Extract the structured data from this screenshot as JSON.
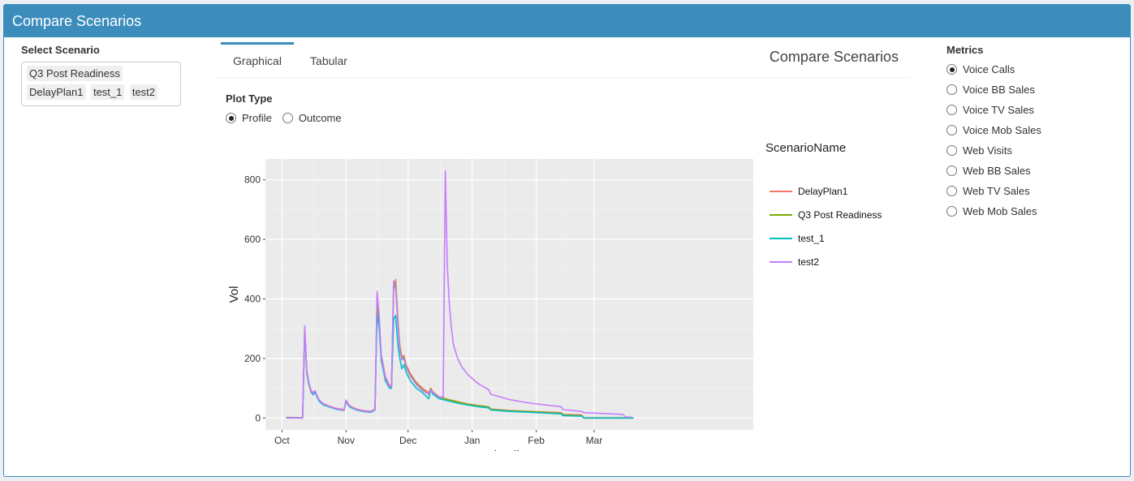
{
  "header": {
    "title": "Compare Scenarios"
  },
  "left": {
    "label": "Select Scenario",
    "chips": [
      "Q3 Post Readiness",
      "DelayPlan1",
      "test_1",
      "test2"
    ]
  },
  "tabs": {
    "items": [
      {
        "label": "Graphical"
      },
      {
        "label": "Tabular"
      }
    ],
    "title": "Compare Scenarios"
  },
  "plot_type": {
    "label": "Plot Type",
    "options": [
      {
        "label": "Profile",
        "checked": true
      },
      {
        "label": "Outcome",
        "checked": false
      }
    ]
  },
  "metrics": {
    "label": "Metrics",
    "options": [
      {
        "label": "Voice Calls",
        "checked": true
      },
      {
        "label": "Voice BB Sales",
        "checked": false
      },
      {
        "label": "Voice TV Sales",
        "checked": false
      },
      {
        "label": "Voice Mob Sales",
        "checked": false
      },
      {
        "label": "Web Visits",
        "checked": false
      },
      {
        "label": "Web BB Sales",
        "checked": false
      },
      {
        "label": "Web TV Sales",
        "checked": false
      },
      {
        "label": "Web Mob Sales",
        "checked": false
      }
    ]
  },
  "chart_data": {
    "type": "line",
    "xlabel": "datelist",
    "ylabel": "Vol",
    "legend_title": "ScenarioName",
    "legend_position": "right",
    "grid": true,
    "ylim": [
      -40,
      870
    ],
    "xlim": [
      -8,
      228
    ],
    "x_ticks": [
      {
        "label": "Oct",
        "day": 0
      },
      {
        "label": "Nov",
        "day": 31
      },
      {
        "label": "Dec",
        "day": 61
      },
      {
        "label": "Jan",
        "day": 92
      },
      {
        "label": "Feb",
        "day": 123
      },
      {
        "label": "Mar",
        "day": 151
      }
    ],
    "y_ticks": [
      0,
      200,
      400,
      600,
      800
    ],
    "series": [
      {
        "name": "DelayPlan1",
        "color": "#f8766d",
        "points": [
          [
            2,
            2
          ],
          [
            9,
            1
          ],
          [
            10,
            1
          ],
          [
            11,
            305
          ],
          [
            12,
            160
          ],
          [
            13,
            120
          ],
          [
            14,
            95
          ],
          [
            15,
            85
          ],
          [
            16,
            90
          ],
          [
            17,
            75
          ],
          [
            18,
            60
          ],
          [
            20,
            48
          ],
          [
            23,
            40
          ],
          [
            26,
            33
          ],
          [
            30,
            28
          ],
          [
            31,
            60
          ],
          [
            32,
            48
          ],
          [
            33,
            40
          ],
          [
            36,
            30
          ],
          [
            39,
            25
          ],
          [
            43,
            22
          ],
          [
            45,
            30
          ],
          [
            46,
            390
          ],
          [
            47,
            330
          ],
          [
            48,
            215
          ],
          [
            50,
            140
          ],
          [
            52,
            110
          ],
          [
            53,
            110
          ],
          [
            54,
            440
          ],
          [
            55,
            465
          ],
          [
            56,
            340
          ],
          [
            57,
            245
          ],
          [
            58,
            205
          ],
          [
            59,
            210
          ],
          [
            60,
            180
          ],
          [
            62,
            150
          ],
          [
            65,
            120
          ],
          [
            68,
            100
          ],
          [
            71,
            85
          ],
          [
            72,
            100
          ],
          [
            73,
            88
          ],
          [
            76,
            72
          ],
          [
            80,
            63
          ],
          [
            85,
            55
          ],
          [
            90,
            47
          ],
          [
            95,
            42
          ],
          [
            100,
            38
          ],
          [
            101,
            30
          ],
          [
            110,
            25
          ],
          [
            120,
            22
          ],
          [
            135,
            18
          ],
          [
            136,
            12
          ],
          [
            145,
            10
          ],
          [
            146,
            1
          ],
          [
            170,
            1
          ]
        ]
      },
      {
        "name": "Q3 Post Readiness",
        "color": "#7cae00",
        "points": [
          [
            2,
            1
          ],
          [
            10,
            1
          ],
          [
            11,
            300
          ],
          [
            12,
            155
          ],
          [
            13,
            115
          ],
          [
            14,
            90
          ],
          [
            15,
            80
          ],
          [
            16,
            88
          ],
          [
            17,
            72
          ],
          [
            18,
            58
          ],
          [
            20,
            45
          ],
          [
            23,
            38
          ],
          [
            26,
            31
          ],
          [
            30,
            26
          ],
          [
            31,
            57
          ],
          [
            32,
            45
          ],
          [
            33,
            37
          ],
          [
            36,
            28
          ],
          [
            39,
            23
          ],
          [
            43,
            20
          ],
          [
            45,
            28
          ],
          [
            46,
            380
          ],
          [
            47,
            320
          ],
          [
            48,
            205
          ],
          [
            50,
            130
          ],
          [
            52,
            102
          ],
          [
            53,
            102
          ],
          [
            54,
            430
          ],
          [
            55,
            455
          ],
          [
            56,
            330
          ],
          [
            57,
            240
          ],
          [
            58,
            200
          ],
          [
            59,
            205
          ],
          [
            60,
            175
          ],
          [
            62,
            145
          ],
          [
            65,
            115
          ],
          [
            68,
            95
          ],
          [
            71,
            80
          ],
          [
            72,
            98
          ],
          [
            73,
            85
          ],
          [
            76,
            70
          ],
          [
            80,
            62
          ],
          [
            85,
            54
          ],
          [
            90,
            46
          ],
          [
            95,
            41
          ],
          [
            100,
            37
          ],
          [
            101,
            29
          ],
          [
            110,
            24
          ],
          [
            120,
            21
          ],
          [
            135,
            16
          ],
          [
            136,
            10
          ],
          [
            145,
            8
          ],
          [
            146,
            0
          ],
          [
            170,
            0
          ]
        ]
      },
      {
        "name": "test_1",
        "color": "#00bfc4",
        "points": [
          [
            2,
            1
          ],
          [
            10,
            1
          ],
          [
            11,
            295
          ],
          [
            12,
            150
          ],
          [
            13,
            112
          ],
          [
            14,
            88
          ],
          [
            15,
            78
          ],
          [
            16,
            86
          ],
          [
            17,
            70
          ],
          [
            18,
            56
          ],
          [
            20,
            44
          ],
          [
            23,
            37
          ],
          [
            26,
            30
          ],
          [
            30,
            25
          ],
          [
            31,
            55
          ],
          [
            32,
            44
          ],
          [
            33,
            36
          ],
          [
            36,
            27
          ],
          [
            39,
            22
          ],
          [
            43,
            19
          ],
          [
            45,
            27
          ],
          [
            46,
            350
          ],
          [
            47,
            300
          ],
          [
            48,
            195
          ],
          [
            50,
            125
          ],
          [
            52,
            100
          ],
          [
            53,
            100
          ],
          [
            54,
            330
          ],
          [
            55,
            345
          ],
          [
            56,
            250
          ],
          [
            57,
            200
          ],
          [
            58,
            165
          ],
          [
            59,
            180
          ],
          [
            60,
            155
          ],
          [
            62,
            125
          ],
          [
            65,
            100
          ],
          [
            68,
            85
          ],
          [
            71,
            65
          ],
          [
            72,
            95
          ],
          [
            73,
            80
          ],
          [
            76,
            65
          ],
          [
            80,
            58
          ],
          [
            85,
            50
          ],
          [
            90,
            43
          ],
          [
            95,
            38
          ],
          [
            100,
            34
          ],
          [
            101,
            27
          ],
          [
            110,
            22
          ],
          [
            120,
            19
          ],
          [
            135,
            14
          ],
          [
            136,
            8
          ],
          [
            145,
            6
          ],
          [
            146,
            0
          ],
          [
            170,
            0
          ]
        ]
      },
      {
        "name": "test2",
        "color": "#c77cff",
        "points": [
          [
            2,
            0
          ],
          [
            10,
            0
          ],
          [
            11,
            310
          ],
          [
            12,
            155
          ],
          [
            13,
            118
          ],
          [
            14,
            92
          ],
          [
            15,
            82
          ],
          [
            16,
            92
          ],
          [
            17,
            74
          ],
          [
            18,
            60
          ],
          [
            20,
            47
          ],
          [
            23,
            39
          ],
          [
            26,
            32
          ],
          [
            30,
            26
          ],
          [
            31,
            60
          ],
          [
            32,
            47
          ],
          [
            33,
            39
          ],
          [
            36,
            29
          ],
          [
            39,
            24
          ],
          [
            43,
            21
          ],
          [
            45,
            29
          ],
          [
            46,
            425
          ],
          [
            47,
            345
          ],
          [
            48,
            210
          ],
          [
            50,
            135
          ],
          [
            52,
            105
          ],
          [
            53,
            105
          ],
          [
            54,
            460
          ],
          [
            55,
            440
          ],
          [
            56,
            320
          ],
          [
            57,
            230
          ],
          [
            58,
            195
          ],
          [
            59,
            200
          ],
          [
            60,
            170
          ],
          [
            62,
            140
          ],
          [
            65,
            112
          ],
          [
            68,
            92
          ],
          [
            71,
            80
          ],
          [
            72,
            95
          ],
          [
            73,
            85
          ],
          [
            76,
            70
          ],
          [
            78,
            70
          ],
          [
            79,
            830
          ],
          [
            80,
            510
          ],
          [
            81,
            380
          ],
          [
            82,
            300
          ],
          [
            83,
            245
          ],
          [
            85,
            200
          ],
          [
            87,
            172
          ],
          [
            90,
            145
          ],
          [
            95,
            115
          ],
          [
            100,
            95
          ],
          [
            101,
            80
          ],
          [
            110,
            62
          ],
          [
            120,
            50
          ],
          [
            135,
            38
          ],
          [
            136,
            28
          ],
          [
            145,
            22
          ],
          [
            146,
            18
          ],
          [
            165,
            12
          ],
          [
            166,
            3
          ],
          [
            169,
            3
          ]
        ]
      }
    ]
  }
}
